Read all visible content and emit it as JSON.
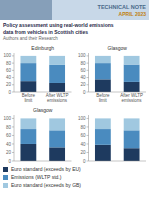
{
  "annotations": [
    "TECHNICAL NOTE",
    "APRIL 2023",
    "Policy assessment using real-world emissions",
    "data from vehicles in Scottish cities",
    "Authors and their Research"
  ],
  "chart_data": [
    {
      "type": "bar",
      "stacked": true,
      "title": "Edinburgh",
      "categories": [
        "Before\nlimit",
        "After WLTP\nemissions"
      ],
      "series": [
        {
          "name": "Euro standard (exceeds by EU)",
          "color": "#1e3a5f",
          "values": [
            30,
            25
          ]
        },
        {
          "name": "Emissions (WLTP std.)",
          "color": "#4a8bbf",
          "values": [
            50,
            50
          ]
        },
        {
          "name": "Euro standard (exceeds by GB)",
          "color": "#a0c8e0",
          "values": [
            20,
            25
          ]
        }
      ],
      "ylim": [
        0,
        108
      ],
      "yticks": [
        0,
        20,
        40,
        60,
        80,
        100
      ],
      "legend": "lower left"
    },
    {
      "type": "bar",
      "stacked": true,
      "title": "Glasgow",
      "categories": [
        "Before\nlimit",
        "After WLTP\nemissions"
      ],
      "series": [
        {
          "color": "#1e3a5f",
          "values": [
            35,
            28
          ]
        },
        {
          "color": "#4a8bbf",
          "values": [
            45,
            48
          ]
        },
        {
          "color": "#a0c8e0",
          "values": [
            20,
            24
          ]
        }
      ],
      "ylim": [
        0,
        108
      ],
      "yticks": [
        0,
        20,
        40,
        60,
        80,
        100
      ]
    },
    {
      "type": "bar",
      "stacked": true,
      "title": "Glasgow",
      "categories": [
        null,
        null
      ],
      "series": [
        {
          "color": "#1e3a5f",
          "values": [
            40,
            32
          ]
        },
        {
          "color": "#4a8bbf",
          "values": [
            35,
            40
          ]
        },
        {
          "color": "#a0c8e0",
          "values": [
            25,
            28
          ]
        }
      ],
      "ylim": [
        0,
        108
      ],
      "yticks": [
        0,
        20,
        40,
        60,
        80,
        100
      ]
    },
    {
      "type": "bar",
      "stacked": true,
      "categories": [
        null,
        null
      ],
      "series": [
        {
          "color": "#1e3a5f",
          "values": [
            38,
            30
          ]
        },
        {
          "color": "#4a8bbf",
          "values": [
            37,
            42
          ]
        },
        {
          "color": "#a0c8e0",
          "values": [
            25,
            28
          ]
        }
      ],
      "ylim": [
        0,
        108
      ],
      "yticks": [
        0,
        20,
        40,
        60,
        80,
        100
      ]
    }
  ]
}
